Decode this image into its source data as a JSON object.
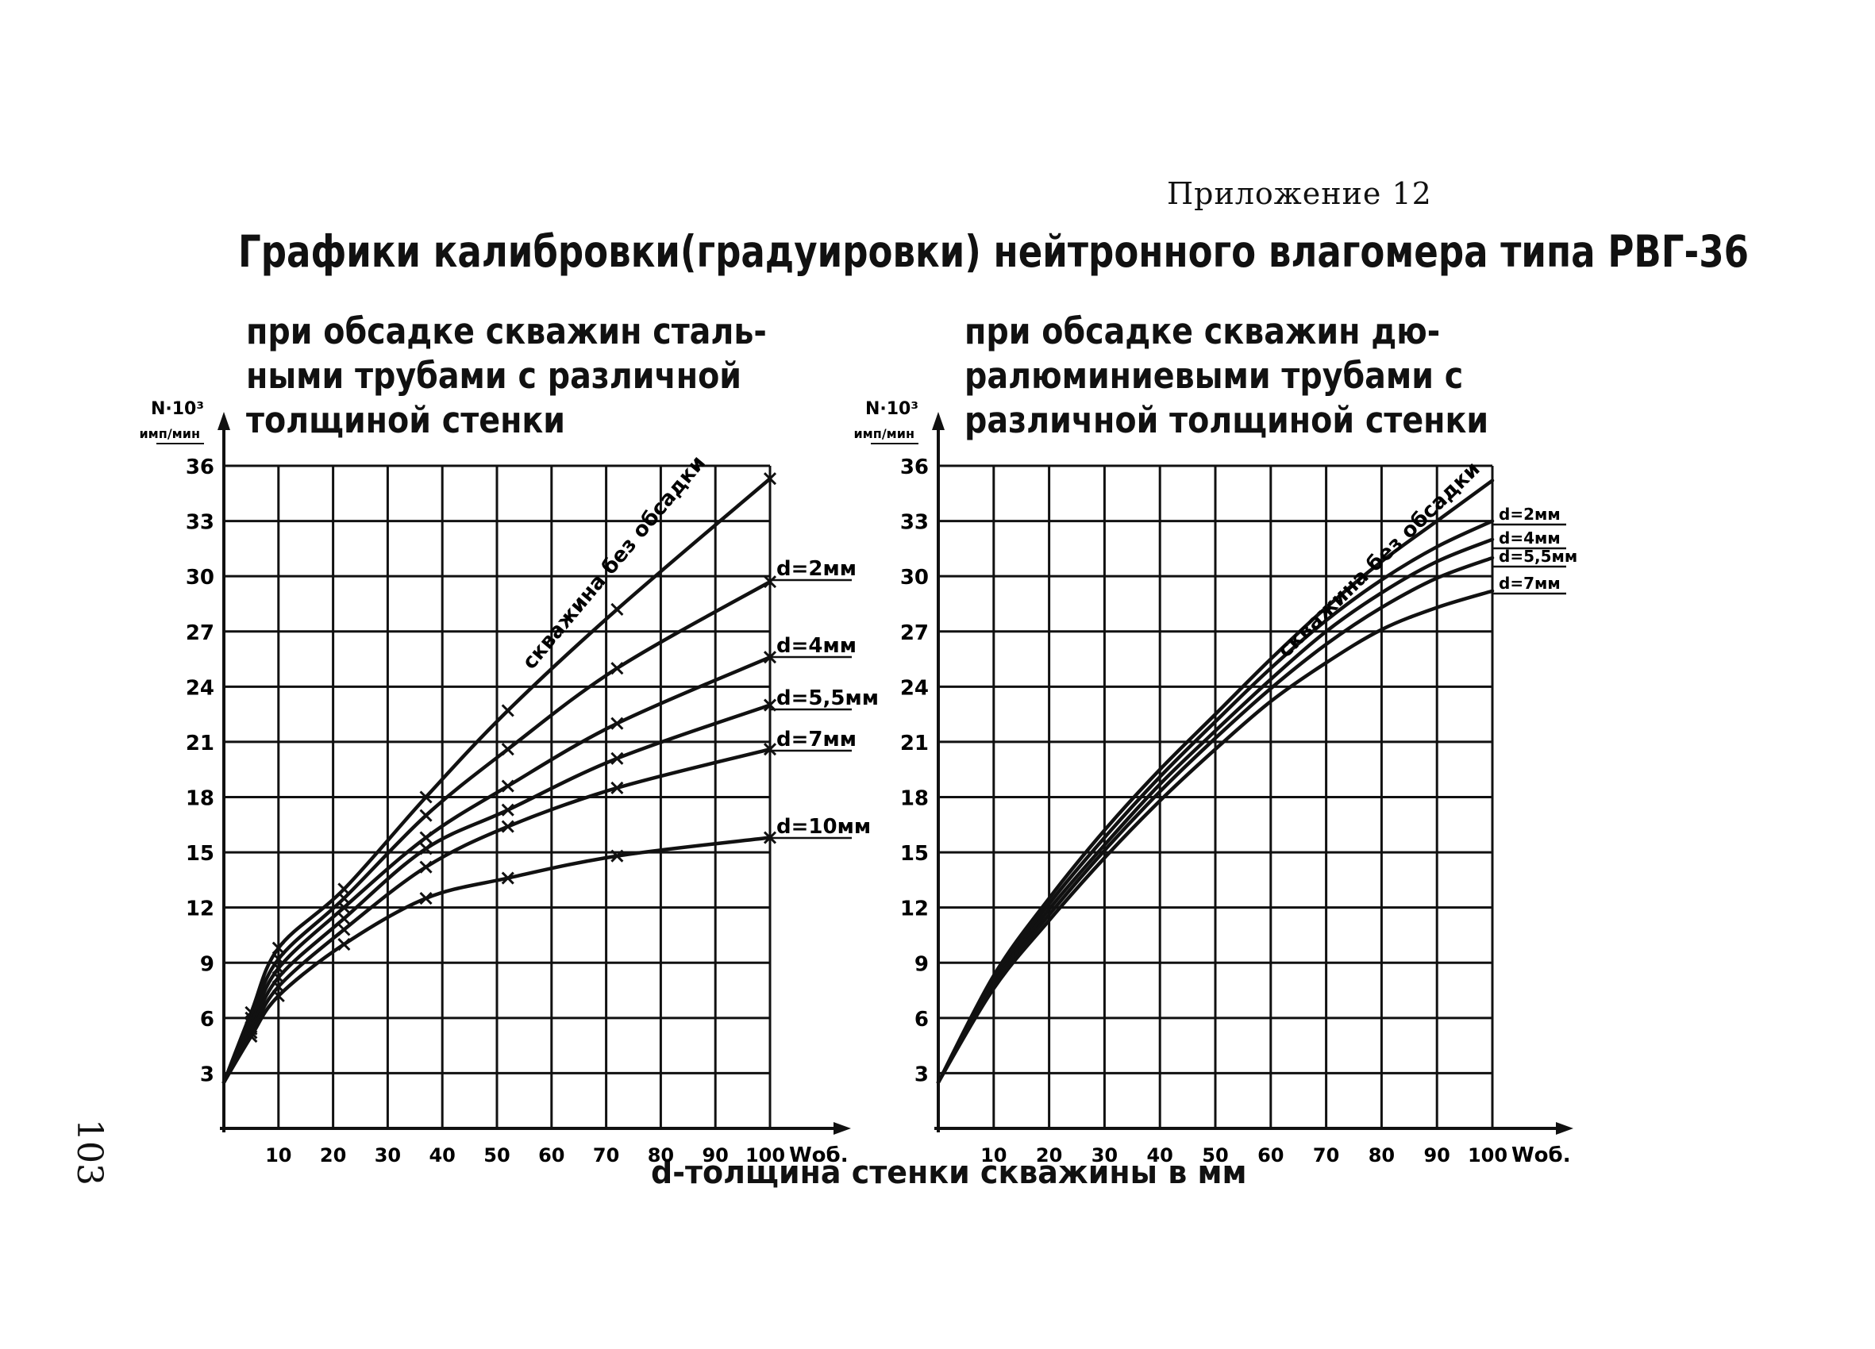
{
  "header": {
    "appendix": "Приложение 12",
    "title": "Графики калибровки(градуировки) нейтронного влагомера типа РВГ-36",
    "subtitle_left": "при обсадке скважин сталь-\nными трубами с различной\nтолщиной стенки",
    "subtitle_right": "при обсадке скважин дю-\nралюминиевыми трубами с\nразличной толщиной стенки",
    "page_number": "103",
    "shared_xlabel": "d-толщина стенки скважины в мм"
  },
  "chart_data": [
    {
      "type": "line",
      "title": "при обсадке скважин сталь- ными трубами с различной толщиной стенки",
      "ylabel_top": "N·10³",
      "ylabel_unit": "имп/мин",
      "xlabel_end": "Wоб.",
      "xlim": [
        0,
        100
      ],
      "ylim": [
        0,
        36
      ],
      "xticks": [
        10,
        20,
        30,
        40,
        50,
        60,
        70,
        80,
        90,
        100
      ],
      "yticks": [
        3,
        6,
        9,
        12,
        15,
        18,
        21,
        24,
        27,
        30,
        33,
        36
      ],
      "grid": true,
      "marker": "x",
      "series": [
        {
          "name": "скважина без обсадки",
          "x": [
            0,
            5,
            10,
            22,
            37,
            52,
            72,
            100
          ],
          "y": [
            2.5,
            6.3,
            9.8,
            13,
            18,
            22.7,
            28.2,
            35.3
          ]
        },
        {
          "name": "d=2мм",
          "x": [
            0,
            5,
            10,
            22,
            37,
            52,
            72,
            100
          ],
          "y": [
            2.5,
            6.0,
            9.2,
            12.5,
            17,
            20.6,
            25,
            29.7
          ]
        },
        {
          "name": "d=4мм",
          "x": [
            0,
            5,
            10,
            22,
            37,
            52,
            72,
            100
          ],
          "y": [
            2.5,
            5.7,
            8.7,
            12,
            15.8,
            18.6,
            22,
            25.6
          ]
        },
        {
          "name": "d=5,5мм",
          "x": [
            0,
            5,
            10,
            22,
            37,
            52,
            72,
            100
          ],
          "y": [
            2.5,
            5.4,
            8.2,
            11.4,
            15.2,
            17.3,
            20.1,
            23
          ]
        },
        {
          "name": "d=7мм",
          "x": [
            0,
            5,
            10,
            22,
            37,
            52,
            72,
            100
          ],
          "y": [
            2.5,
            5.2,
            7.7,
            10.8,
            14.2,
            16.4,
            18.5,
            20.6
          ]
        },
        {
          "name": "d=10мм",
          "x": [
            0,
            5,
            10,
            22,
            37,
            52,
            72,
            100
          ],
          "y": [
            2.5,
            5.0,
            7.2,
            10,
            12.5,
            13.6,
            14.8,
            15.8
          ]
        }
      ],
      "legend_labels": [
        "d=2мм",
        "d=4мм",
        "d=5,5мм",
        "d=7мм",
        "d=10мм"
      ],
      "curve_label": "скважина без обсадки"
    },
    {
      "type": "line",
      "title": "при обсадке скважин дю- ралюминиевыми трубами с различной толщиной стенки",
      "ylabel_top": "N·10³",
      "ylabel_unit": "имп/мин",
      "xlabel_end": "Wоб.",
      "xlim": [
        0,
        100
      ],
      "ylim": [
        0,
        36
      ],
      "xticks": [
        10,
        20,
        30,
        40,
        50,
        60,
        70,
        80,
        90,
        100
      ],
      "yticks": [
        3,
        6,
        9,
        12,
        15,
        18,
        21,
        24,
        27,
        30,
        33,
        36
      ],
      "grid": true,
      "marker": "none",
      "series": [
        {
          "name": "скважина без обсадки",
          "x": [
            0,
            10,
            20,
            30,
            40,
            50,
            60,
            70,
            80,
            90,
            100
          ],
          "y": [
            2.5,
            8.3,
            12.5,
            16.2,
            19.5,
            22.5,
            25.5,
            28.3,
            30.8,
            33,
            35.2
          ]
        },
        {
          "name": "d=2мм",
          "x": [
            0,
            10,
            20,
            30,
            40,
            50,
            60,
            70,
            80,
            90,
            100
          ],
          "y": [
            2.5,
            8.1,
            12.2,
            15.8,
            19.1,
            22.1,
            25,
            27.6,
            29.8,
            31.6,
            33
          ]
        },
        {
          "name": "d=4мм",
          "x": [
            0,
            10,
            20,
            30,
            40,
            50,
            60,
            70,
            80,
            90,
            100
          ],
          "y": [
            2.5,
            7.9,
            11.9,
            15.4,
            18.7,
            21.6,
            24.4,
            27,
            29.1,
            30.8,
            32
          ]
        },
        {
          "name": "d=5,5мм",
          "x": [
            0,
            10,
            20,
            30,
            40,
            50,
            60,
            70,
            80,
            90,
            100
          ],
          "y": [
            2.5,
            7.8,
            11.6,
            15.1,
            18.3,
            21.2,
            23.9,
            26.3,
            28.3,
            29.9,
            31
          ]
        },
        {
          "name": "d=7мм",
          "x": [
            0,
            10,
            20,
            30,
            40,
            50,
            60,
            70,
            80,
            90,
            100
          ],
          "y": [
            2.5,
            7.6,
            11.3,
            14.7,
            17.8,
            20.6,
            23.2,
            25.3,
            27.1,
            28.3,
            29.2
          ]
        }
      ],
      "legend_labels": [
        "d=2мм",
        "d=4мм",
        "d=5,5мм",
        "d=7мм"
      ],
      "curve_label": "скважина без обсадки"
    }
  ]
}
